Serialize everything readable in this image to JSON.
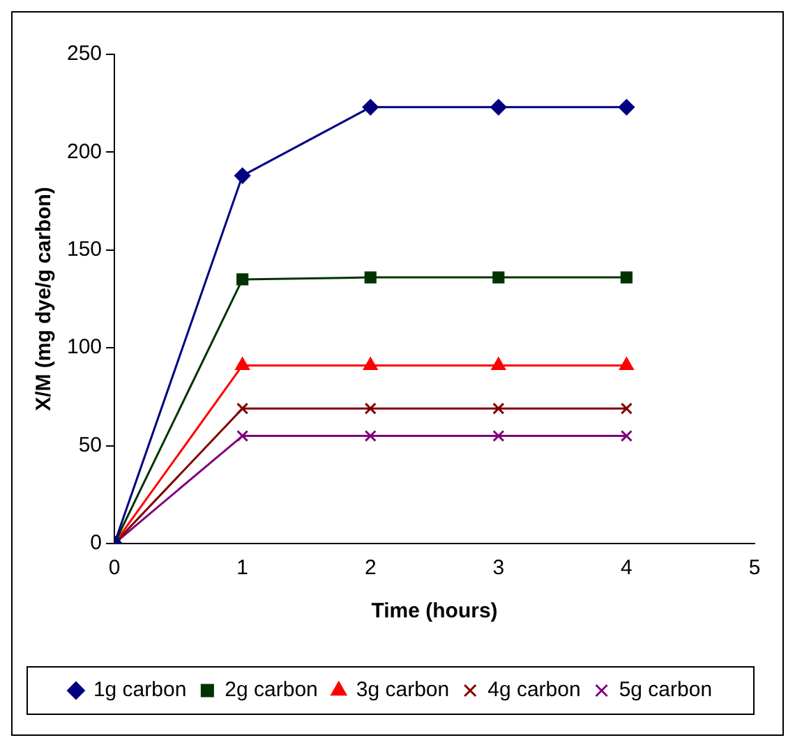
{
  "chart_data": {
    "type": "line",
    "xlabel": "Time (hours)",
    "ylabel": "X/M (mg dye/g carbon)",
    "x": [
      0,
      1,
      2,
      3,
      4
    ],
    "series": [
      {
        "name": "1g carbon",
        "color": "#000080",
        "marker": "diamond",
        "values": [
          0,
          188,
          223,
          223,
          223
        ]
      },
      {
        "name": "2g carbon",
        "color": "#003300",
        "marker": "square",
        "values": [
          0,
          135,
          136,
          136,
          136
        ]
      },
      {
        "name": "3g carbon",
        "color": "#ff0000",
        "marker": "triangle",
        "values": [
          0,
          91,
          91,
          91,
          91
        ]
      },
      {
        "name": "4g carbon",
        "color": "#800000",
        "marker": "cross",
        "values": [
          0,
          69,
          69,
          69,
          69
        ]
      },
      {
        "name": "5g carbon",
        "color": "#800080",
        "marker": "cross",
        "values": [
          0,
          55,
          55,
          55,
          55
        ]
      }
    ],
    "xlim": [
      0,
      5
    ],
    "xticks": [
      0,
      1,
      2,
      3,
      4,
      5
    ],
    "ylim": [
      0,
      250
    ],
    "yticks": [
      0,
      50,
      100,
      150,
      200,
      250
    ],
    "grid": false,
    "legend": "bottom"
  }
}
